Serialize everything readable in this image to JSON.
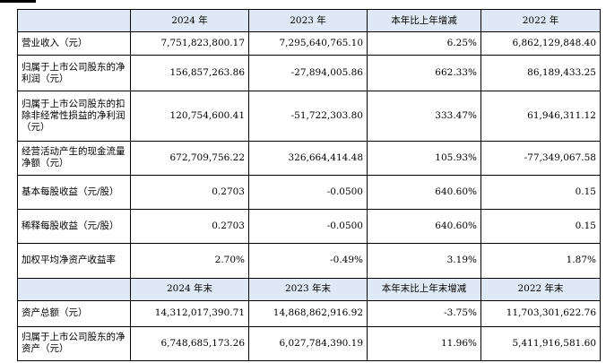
{
  "header_top": {
    "label": "",
    "c1": "2024 年",
    "c2": "2023 年",
    "c3": "本年比上年增减",
    "c4": "2022 年"
  },
  "rows_top": [
    {
      "label": "营业收入（元）",
      "v2024": "7,751,823,800.17",
      "v2023": "7,295,640,765.10",
      "change": "6.25%",
      "v2022": "6,862,129,848.40"
    },
    {
      "label": "归属于上市公司股东的净利润（元）",
      "v2024": "156,857,263.86",
      "v2023": "-27,894,005.86",
      "change": "662.33%",
      "v2022": "86,189,433.25"
    },
    {
      "label": "归属于上市公司股东的扣除非经常性损益的净利润（元）",
      "v2024": "120,754,600.41",
      "v2023": "-51,722,303.80",
      "change": "333.47%",
      "v2022": "61,946,311.12"
    },
    {
      "label": "经营活动产生的现金流量净额（元）",
      "v2024": "672,709,756.22",
      "v2023": "326,664,414.48",
      "change": "105.93%",
      "v2022": "-77,349,067.58"
    },
    {
      "label": "基本每股收益（元/股）",
      "v2024": "0.2703",
      "v2023": "-0.0500",
      "change": "640.60%",
      "v2022": "0.15"
    },
    {
      "label": "稀释每股收益（元/股）",
      "v2024": "0.2703",
      "v2023": "-0.0500",
      "change": "640.60%",
      "v2022": "0.15"
    },
    {
      "label": "加权平均净资产收益率",
      "v2024": "2.70%",
      "v2023": "-0.49%",
      "change": "3.19%",
      "v2022": "1.87%"
    }
  ],
  "header_bottom": {
    "label": "",
    "c1": "2024 年末",
    "c2": "2023 年末",
    "c3": "本年末比上年末增减",
    "c4": "2022 年末"
  },
  "rows_bottom": [
    {
      "label": "资产总额（元）",
      "v2024": "14,312,017,390.71",
      "v2023": "14,868,862,916.92",
      "change": "-3.75%",
      "v2022": "11,703,301,622.76"
    },
    {
      "label": "归属于上市公司股东的净资产（元）",
      "v2024": "6,748,685,173.26",
      "v2023": "6,027,784,390.19",
      "change": "11.96%",
      "v2022": "5,411,916,581.60"
    }
  ]
}
